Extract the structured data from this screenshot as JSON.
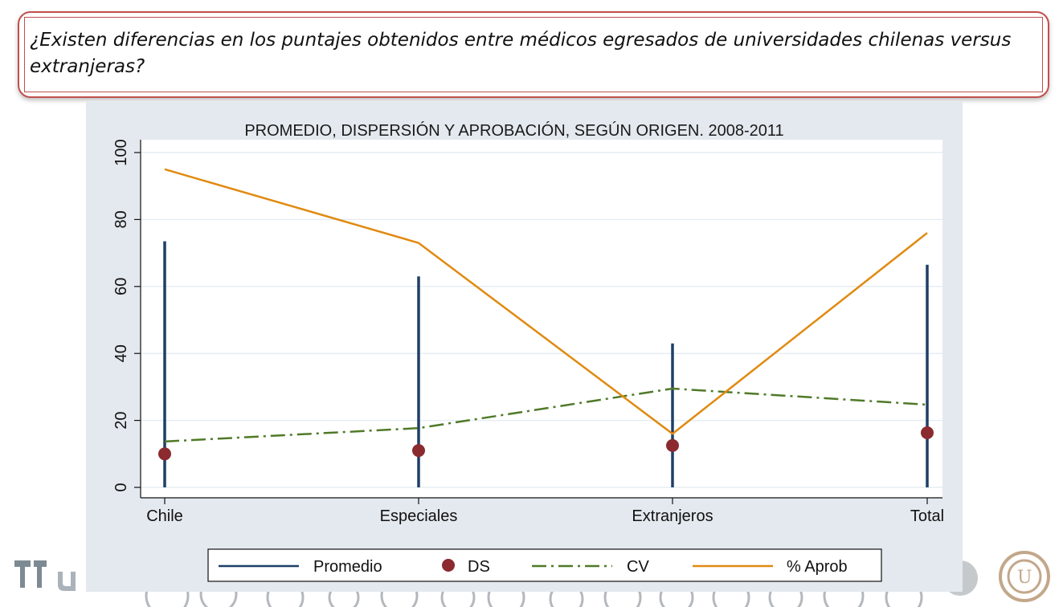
{
  "slide": {
    "question": "¿Existen diferencias en los puntajes obtenidos entre médicos egresados de universidades chilenas versus extranjeras?"
  },
  "colors": {
    "border": "#c0504d",
    "panel_bg": "#e4e9ef",
    "promedio": "#1f3f66",
    "ds": "#8b2a2f",
    "cv": "#4f7a28",
    "aprob": "#e08a10"
  },
  "chart_data": {
    "type": "line",
    "title": "PROMEDIO, DISPERSIÓN Y APROBACIÓN, SEGÚN ORIGEN. 2008-2011",
    "xlabel": "",
    "ylabel": "",
    "categories": [
      "Chile",
      "Especiales",
      "Extranjeros",
      "Total"
    ],
    "ylim": [
      0,
      100
    ],
    "yticks": [
      "0",
      "20",
      "40",
      "60",
      "80",
      "100"
    ],
    "grid": true,
    "legend_position": "bottom",
    "series": [
      {
        "name": "Promedio",
        "style": "spike",
        "values": [
          73.5,
          63,
          43,
          66.5
        ]
      },
      {
        "name": "DS",
        "style": "marker",
        "values": [
          10,
          11,
          12.5,
          16.3
        ]
      },
      {
        "name": "CV",
        "style": "dash-dot",
        "values": [
          13.7,
          17.7,
          29.5,
          24.7
        ]
      },
      {
        "name": "% Aprob",
        "style": "line",
        "values": [
          95,
          73,
          16,
          76
        ]
      }
    ]
  }
}
